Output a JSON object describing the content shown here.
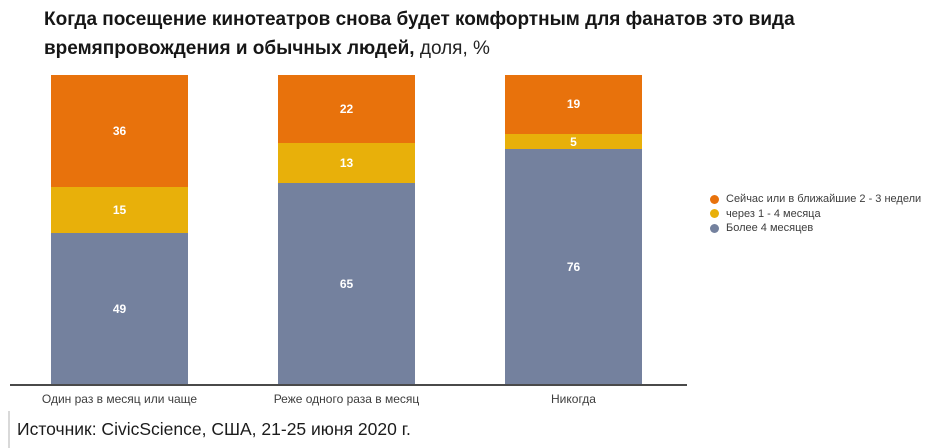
{
  "title": {
    "line1_bold": "Когда посещение кинотеатров снова будет комфортным для фанатов это вида",
    "line2_bold": "времяпровождения и обычных людей,",
    "line2_normal": " доля, %"
  },
  "source": {
    "text": "Источник: CivicScience, США, 21-25 июня 2020 г."
  },
  "colors": {
    "orange": "#E8720C",
    "yellow": "#E8B00A",
    "slate": "#74819E",
    "axis": "#4A4A4A",
    "value_label": "#FFFFFF"
  },
  "chart_data": {
    "type": "bar",
    "subtype": "stacked-100-percent",
    "title": "Когда посещение кинотеатров снова будет комфортным для фанатов это вида времяпровождения и обычных людей, доля, %",
    "categories": [
      "Один раз в месяц или чаще",
      "Реже одного раза в месяц",
      "Никогда"
    ],
    "series": [
      {
        "name": "Сейчас или в ближайшие 2 - 3 недели",
        "color": "#E8720C",
        "values": [
          36,
          22,
          19
        ]
      },
      {
        "name": "через 1 - 4 месяца",
        "color": "#E8B00A",
        "values": [
          15,
          13,
          5
        ]
      },
      {
        "name": "Более 4 месяцев",
        "color": "#74819E",
        "values": [
          49,
          65,
          76
        ]
      }
    ],
    "stack_order_top_to_bottom": [
      "Сейчас или в ближайшие 2 - 3 недели",
      "через 1 - 4 месяца",
      "Более 4 месяцев"
    ],
    "ylim": [
      0,
      100
    ],
    "value_labels": true,
    "grid": false,
    "legend_position": "right",
    "xlabel": "",
    "ylabel": ""
  }
}
